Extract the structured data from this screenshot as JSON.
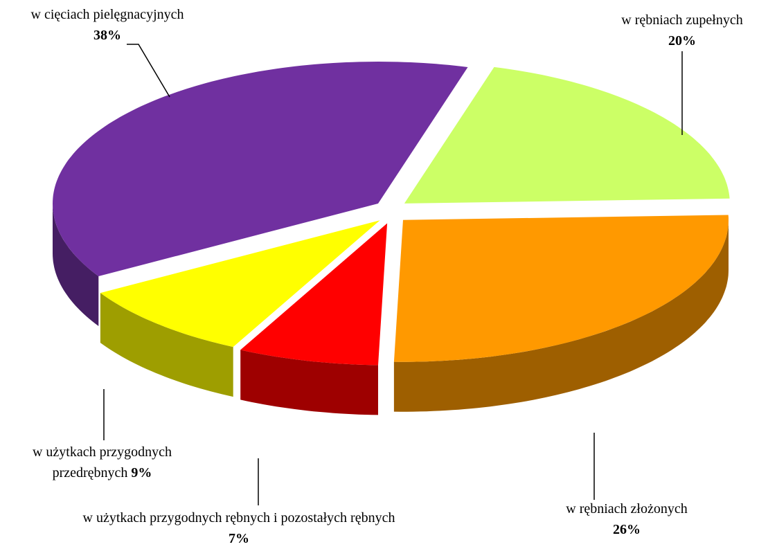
{
  "chart_data": {
    "type": "pie",
    "categories": [
      "w rębniach zupełnych",
      "w rębniach złożonych",
      "w użytkach przygodnych rębnych i pozostałych rębnych",
      "w użytkach przygodnych przedrębnych",
      "w cięciach pielęgnacyjnych"
    ],
    "values": [
      20,
      26,
      7,
      9,
      38
    ],
    "value_labels": [
      "20%",
      "26%",
      "7%",
      "9%",
      "38%"
    ],
    "colors": [
      "#ccff66",
      "#ff9900",
      "#ff0000",
      "#ffff00",
      "#7030a0"
    ]
  }
}
